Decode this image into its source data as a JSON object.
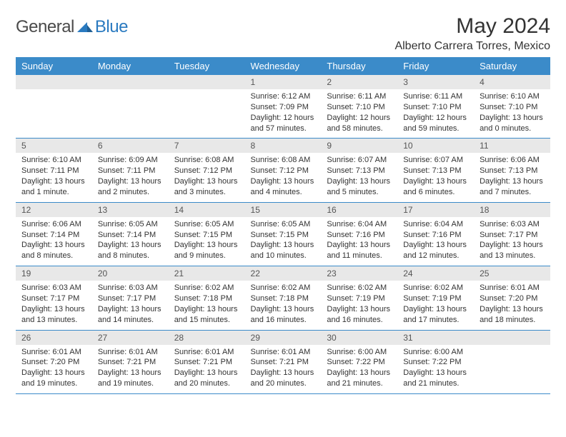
{
  "logo": {
    "general": "General",
    "blue": "Blue"
  },
  "title": "May 2024",
  "location": "Alberto Carrera Torres, Mexico",
  "colors": {
    "header_bg": "#3b8bc9",
    "header_text": "#ffffff",
    "daynum_bg": "#e8e8e8",
    "rule": "#3b8bc9",
    "logo_blue": "#2a7ac0",
    "text": "#333333"
  },
  "weekdays": [
    "Sunday",
    "Monday",
    "Tuesday",
    "Wednesday",
    "Thursday",
    "Friday",
    "Saturday"
  ],
  "weeks": [
    [
      {
        "n": "",
        "lines": []
      },
      {
        "n": "",
        "lines": []
      },
      {
        "n": "",
        "lines": []
      },
      {
        "n": "1",
        "lines": [
          "Sunrise: 6:12 AM",
          "Sunset: 7:09 PM",
          "Daylight: 12 hours",
          "and 57 minutes."
        ]
      },
      {
        "n": "2",
        "lines": [
          "Sunrise: 6:11 AM",
          "Sunset: 7:10 PM",
          "Daylight: 12 hours",
          "and 58 minutes."
        ]
      },
      {
        "n": "3",
        "lines": [
          "Sunrise: 6:11 AM",
          "Sunset: 7:10 PM",
          "Daylight: 12 hours",
          "and 59 minutes."
        ]
      },
      {
        "n": "4",
        "lines": [
          "Sunrise: 6:10 AM",
          "Sunset: 7:10 PM",
          "Daylight: 13 hours",
          "and 0 minutes."
        ]
      }
    ],
    [
      {
        "n": "5",
        "lines": [
          "Sunrise: 6:10 AM",
          "Sunset: 7:11 PM",
          "Daylight: 13 hours",
          "and 1 minute."
        ]
      },
      {
        "n": "6",
        "lines": [
          "Sunrise: 6:09 AM",
          "Sunset: 7:11 PM",
          "Daylight: 13 hours",
          "and 2 minutes."
        ]
      },
      {
        "n": "7",
        "lines": [
          "Sunrise: 6:08 AM",
          "Sunset: 7:12 PM",
          "Daylight: 13 hours",
          "and 3 minutes."
        ]
      },
      {
        "n": "8",
        "lines": [
          "Sunrise: 6:08 AM",
          "Sunset: 7:12 PM",
          "Daylight: 13 hours",
          "and 4 minutes."
        ]
      },
      {
        "n": "9",
        "lines": [
          "Sunrise: 6:07 AM",
          "Sunset: 7:13 PM",
          "Daylight: 13 hours",
          "and 5 minutes."
        ]
      },
      {
        "n": "10",
        "lines": [
          "Sunrise: 6:07 AM",
          "Sunset: 7:13 PM",
          "Daylight: 13 hours",
          "and 6 minutes."
        ]
      },
      {
        "n": "11",
        "lines": [
          "Sunrise: 6:06 AM",
          "Sunset: 7:13 PM",
          "Daylight: 13 hours",
          "and 7 minutes."
        ]
      }
    ],
    [
      {
        "n": "12",
        "lines": [
          "Sunrise: 6:06 AM",
          "Sunset: 7:14 PM",
          "Daylight: 13 hours",
          "and 8 minutes."
        ]
      },
      {
        "n": "13",
        "lines": [
          "Sunrise: 6:05 AM",
          "Sunset: 7:14 PM",
          "Daylight: 13 hours",
          "and 8 minutes."
        ]
      },
      {
        "n": "14",
        "lines": [
          "Sunrise: 6:05 AM",
          "Sunset: 7:15 PM",
          "Daylight: 13 hours",
          "and 9 minutes."
        ]
      },
      {
        "n": "15",
        "lines": [
          "Sunrise: 6:05 AM",
          "Sunset: 7:15 PM",
          "Daylight: 13 hours",
          "and 10 minutes."
        ]
      },
      {
        "n": "16",
        "lines": [
          "Sunrise: 6:04 AM",
          "Sunset: 7:16 PM",
          "Daylight: 13 hours",
          "and 11 minutes."
        ]
      },
      {
        "n": "17",
        "lines": [
          "Sunrise: 6:04 AM",
          "Sunset: 7:16 PM",
          "Daylight: 13 hours",
          "and 12 minutes."
        ]
      },
      {
        "n": "18",
        "lines": [
          "Sunrise: 6:03 AM",
          "Sunset: 7:17 PM",
          "Daylight: 13 hours",
          "and 13 minutes."
        ]
      }
    ],
    [
      {
        "n": "19",
        "lines": [
          "Sunrise: 6:03 AM",
          "Sunset: 7:17 PM",
          "Daylight: 13 hours",
          "and 13 minutes."
        ]
      },
      {
        "n": "20",
        "lines": [
          "Sunrise: 6:03 AM",
          "Sunset: 7:17 PM",
          "Daylight: 13 hours",
          "and 14 minutes."
        ]
      },
      {
        "n": "21",
        "lines": [
          "Sunrise: 6:02 AM",
          "Sunset: 7:18 PM",
          "Daylight: 13 hours",
          "and 15 minutes."
        ]
      },
      {
        "n": "22",
        "lines": [
          "Sunrise: 6:02 AM",
          "Sunset: 7:18 PM",
          "Daylight: 13 hours",
          "and 16 minutes."
        ]
      },
      {
        "n": "23",
        "lines": [
          "Sunrise: 6:02 AM",
          "Sunset: 7:19 PM",
          "Daylight: 13 hours",
          "and 16 minutes."
        ]
      },
      {
        "n": "24",
        "lines": [
          "Sunrise: 6:02 AM",
          "Sunset: 7:19 PM",
          "Daylight: 13 hours",
          "and 17 minutes."
        ]
      },
      {
        "n": "25",
        "lines": [
          "Sunrise: 6:01 AM",
          "Sunset: 7:20 PM",
          "Daylight: 13 hours",
          "and 18 minutes."
        ]
      }
    ],
    [
      {
        "n": "26",
        "lines": [
          "Sunrise: 6:01 AM",
          "Sunset: 7:20 PM",
          "Daylight: 13 hours",
          "and 19 minutes."
        ]
      },
      {
        "n": "27",
        "lines": [
          "Sunrise: 6:01 AM",
          "Sunset: 7:21 PM",
          "Daylight: 13 hours",
          "and 19 minutes."
        ]
      },
      {
        "n": "28",
        "lines": [
          "Sunrise: 6:01 AM",
          "Sunset: 7:21 PM",
          "Daylight: 13 hours",
          "and 20 minutes."
        ]
      },
      {
        "n": "29",
        "lines": [
          "Sunrise: 6:01 AM",
          "Sunset: 7:21 PM",
          "Daylight: 13 hours",
          "and 20 minutes."
        ]
      },
      {
        "n": "30",
        "lines": [
          "Sunrise: 6:00 AM",
          "Sunset: 7:22 PM",
          "Daylight: 13 hours",
          "and 21 minutes."
        ]
      },
      {
        "n": "31",
        "lines": [
          "Sunrise: 6:00 AM",
          "Sunset: 7:22 PM",
          "Daylight: 13 hours",
          "and 21 minutes."
        ]
      },
      {
        "n": "",
        "lines": []
      }
    ]
  ]
}
